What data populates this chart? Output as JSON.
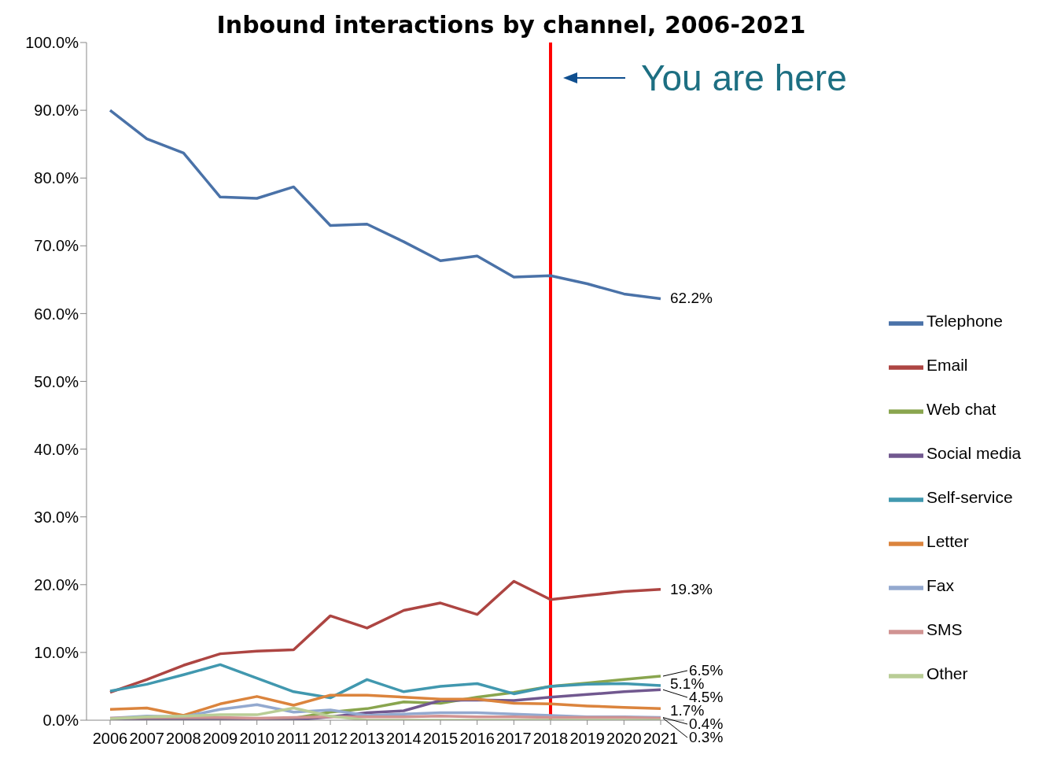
{
  "chart_data": {
    "type": "line",
    "title": "Inbound interactions by channel, 2006-2021",
    "categories": [
      "2006",
      "2007",
      "2008",
      "2009",
      "2010",
      "2011",
      "2012",
      "2013",
      "2014",
      "2015",
      "2016",
      "2017",
      "2018",
      "2019",
      "2020",
      "2021"
    ],
    "series": [
      {
        "name": "Telephone",
        "color": "#4a72a8",
        "values": [
          90.0,
          85.8,
          83.7,
          77.2,
          77.0,
          78.7,
          73.0,
          73.2,
          70.6,
          67.8,
          68.5,
          65.4,
          65.6,
          64.4,
          62.9,
          62.2
        ],
        "value_labels": [
          null,
          null,
          null,
          null,
          null,
          null,
          null,
          null,
          null,
          null,
          null,
          null,
          null,
          null,
          null,
          "62.2%"
        ]
      },
      {
        "name": "Email",
        "color": "#ad4542",
        "values": [
          4.1,
          6.0,
          8.1,
          9.8,
          10.2,
          10.4,
          15.4,
          13.6,
          16.2,
          17.3,
          15.6,
          20.5,
          17.8,
          18.4,
          19.0,
          19.3
        ],
        "value_labels": [
          null,
          null,
          null,
          null,
          null,
          null,
          null,
          null,
          null,
          null,
          null,
          null,
          null,
          null,
          null,
          "19.3%"
        ]
      },
      {
        "name": "Web chat",
        "color": "#89a54e",
        "values": [
          0,
          0,
          0,
          0,
          0,
          0.3,
          1.2,
          1.7,
          2.7,
          2.5,
          3.4,
          4.1,
          5.0,
          5.5,
          6.0,
          6.5
        ],
        "value_labels": [
          null,
          null,
          null,
          null,
          null,
          null,
          null,
          null,
          null,
          null,
          null,
          null,
          null,
          null,
          null,
          "6.5%"
        ]
      },
      {
        "name": "Social media",
        "color": "#71588f",
        "values": [
          0,
          0,
          0,
          0,
          0,
          0,
          0.5,
          1.1,
          1.4,
          2.9,
          3.0,
          2.9,
          3.4,
          3.8,
          4.2,
          4.5
        ],
        "value_labels": [
          null,
          null,
          null,
          null,
          null,
          null,
          null,
          null,
          null,
          null,
          null,
          null,
          null,
          null,
          null,
          "4.5%"
        ]
      },
      {
        "name": "Self-service",
        "color": "#4198af",
        "values": [
          4.3,
          5.3,
          6.7,
          8.2,
          6.2,
          4.2,
          3.3,
          6.0,
          4.2,
          5.0,
          5.4,
          3.9,
          5.0,
          5.3,
          5.4,
          5.1
        ],
        "value_labels": [
          null,
          null,
          null,
          null,
          null,
          null,
          null,
          null,
          null,
          null,
          null,
          null,
          null,
          null,
          null,
          "5.1%"
        ]
      },
      {
        "name": "Letter",
        "color": "#db843d",
        "values": [
          1.6,
          1.8,
          0.7,
          2.4,
          3.5,
          2.2,
          3.7,
          3.7,
          3.4,
          3.1,
          3.1,
          2.5,
          2.4,
          2.1,
          1.9,
          1.7
        ],
        "value_labels": [
          null,
          null,
          null,
          null,
          null,
          null,
          null,
          null,
          null,
          null,
          null,
          null,
          null,
          null,
          null,
          "1.7%"
        ]
      },
      {
        "name": "Fax",
        "color": "#93a9cf",
        "values": [
          0.3,
          0.6,
          0.5,
          1.6,
          2.3,
          1.2,
          1.5,
          0.7,
          0.9,
          1.1,
          1.1,
          0.9,
          0.7,
          0.5,
          0.5,
          0.4
        ],
        "value_labels": [
          null,
          null,
          null,
          null,
          null,
          null,
          null,
          null,
          null,
          null,
          null,
          null,
          null,
          null,
          null,
          "0.4%"
        ]
      },
      {
        "name": "SMS",
        "color": "#d19392",
        "values": [
          0.3,
          0.4,
          0.4,
          0.4,
          0.3,
          0.4,
          0.5,
          0.5,
          0.5,
          0.6,
          0.5,
          0.5,
          0.4,
          0.4,
          0.4,
          0.3
        ],
        "value_labels": [
          null,
          null,
          null,
          null,
          null,
          null,
          null,
          null,
          null,
          null,
          null,
          null,
          null,
          null,
          null,
          "0.3%"
        ]
      },
      {
        "name": "Other",
        "color": "#b9cd96",
        "values": [
          0.2,
          0.5,
          0.6,
          0.8,
          0.8,
          1.8,
          0.6,
          0,
          0,
          0,
          0,
          0,
          0,
          0,
          0,
          0
        ]
      }
    ],
    "ylim": [
      0,
      100
    ],
    "yticks": [
      {
        "value": 0,
        "label": "0.0%"
      },
      {
        "value": 10,
        "label": "10.0%"
      },
      {
        "value": 20,
        "label": "20.0%"
      },
      {
        "value": 30,
        "label": "30.0%"
      },
      {
        "value": 40,
        "label": "40.0%"
      },
      {
        "value": 50,
        "label": "50.0%"
      },
      {
        "value": 60,
        "label": "60.0%"
      },
      {
        "value": 70,
        "label": "70.0%"
      },
      {
        "value": 80,
        "label": "80.0%"
      },
      {
        "value": 90,
        "label": "90.0%"
      },
      {
        "value": 100,
        "label": "100.0%"
      }
    ],
    "ref_lines": [
      {
        "axis": "x",
        "value": "2018",
        "color": "#ff0000"
      }
    ],
    "annotations": [
      "You are here"
    ],
    "grid": false,
    "legend": "right",
    "marker": "none",
    "line_style": "solid"
  }
}
